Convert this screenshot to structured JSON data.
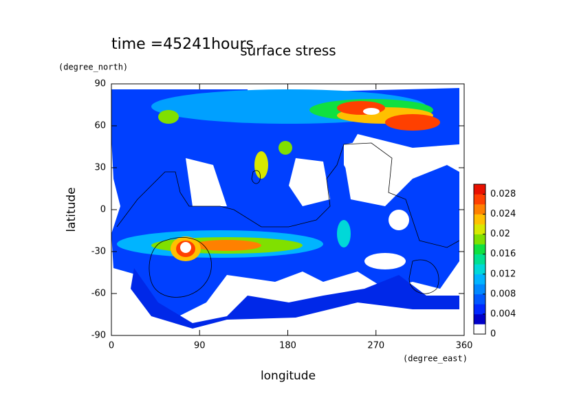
{
  "chart_data": {
    "type": "contour",
    "title": "surface stress",
    "annotation": "time =45241hours",
    "xlabel": "longitude",
    "ylabel": "latitude",
    "xunit": "(degree_east)",
    "yunit": "(degree_north)",
    "xlim": [
      0,
      360
    ],
    "xticks": [
      0,
      90,
      180,
      270,
      360
    ],
    "ylim": [
      -90,
      90
    ],
    "yticks": [
      -90,
      -60,
      -30,
      0,
      30,
      60,
      90
    ],
    "colorbar_lim": [
      0,
      0.03
    ],
    "colorbar_ticks": [
      0,
      0.004,
      0.008,
      0.012,
      0.016,
      0.02,
      0.024,
      0.028
    ],
    "colors": [
      "#ffffff",
      "#0000c8",
      "#0028ff",
      "#0058ff",
      "#0088ff",
      "#00b4ff",
      "#00d8d8",
      "#00e090",
      "#10e040",
      "#80e000",
      "#d8e800",
      "#ffc000",
      "#ff8000",
      "#ff4000",
      "#e81000"
    ]
  }
}
